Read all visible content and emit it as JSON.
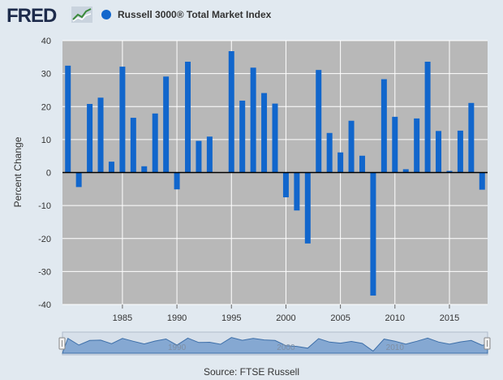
{
  "header": {
    "logo_text": "FRED",
    "legend_label": "Russell 3000® Total Market Index",
    "series_color": "#1166cc"
  },
  "source": "Source: FTSE Russell",
  "navigator": {
    "labels": [
      "1990",
      "2000",
      "2010"
    ]
  },
  "chart_data": {
    "type": "bar",
    "ylabel": "Percent Change",
    "xlabel": "",
    "ylim": [
      -40,
      40
    ],
    "yticks": [
      -40,
      -30,
      -20,
      -10,
      0,
      10,
      20,
      30,
      40
    ],
    "xticks": [
      1985,
      1990,
      1995,
      2000,
      2005,
      2010,
      2015
    ],
    "xlim": [
      1979.5,
      2018.5
    ],
    "grid": true,
    "legend_position": "top-left",
    "series": [
      {
        "name": "Russell 3000® Total Market Index",
        "color": "#1166cc",
        "x": [
          1980,
          1981,
          1982,
          1983,
          1984,
          1985,
          1986,
          1987,
          1988,
          1989,
          1990,
          1991,
          1992,
          1993,
          1994,
          1995,
          1996,
          1997,
          1998,
          1999,
          2000,
          2001,
          2002,
          2003,
          2004,
          2005,
          2006,
          2007,
          2008,
          2009,
          2010,
          2011,
          2012,
          2013,
          2014,
          2015,
          2016,
          2017,
          2018
        ],
        "values": [
          32.4,
          -4.4,
          20.8,
          22.7,
          3.3,
          32.1,
          16.6,
          1.9,
          17.9,
          29.1,
          -5.1,
          33.6,
          9.6,
          10.9,
          0.0,
          36.8,
          21.8,
          31.8,
          24.1,
          20.9,
          -7.5,
          -11.5,
          -21.5,
          31.1,
          12.0,
          6.1,
          15.7,
          5.1,
          -37.3,
          28.3,
          16.9,
          1.0,
          16.4,
          33.6,
          12.6,
          0.5,
          12.7,
          21.1,
          -5.2
        ]
      }
    ]
  }
}
